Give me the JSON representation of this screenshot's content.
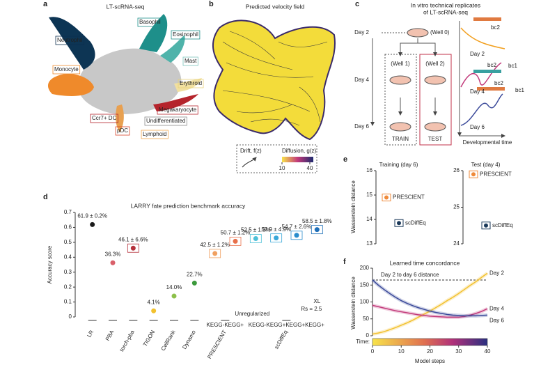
{
  "panel_a": {
    "letter": "a",
    "title": "LT-scRNA-seq",
    "labels": [
      {
        "text": "Neutrophil",
        "color": "#0d2f4f"
      },
      {
        "text": "Basophil",
        "color": "#1e8f8a"
      },
      {
        "text": "Eosinophil",
        "color": "#1e8f8a"
      },
      {
        "text": "Mast",
        "color": "#7cc4bd"
      },
      {
        "text": "Monocyte",
        "color": "#ef8a2b"
      },
      {
        "text": "Erythroid",
        "color": "#e8d27a"
      },
      {
        "text": "Megakaryocyte",
        "color": "#b5242c"
      },
      {
        "text": "Ccr7+ DC",
        "color": "#b5242c"
      },
      {
        "text": "Undifferentiated",
        "color": "#8a8a8a"
      },
      {
        "text": "pDC",
        "color": "#d9452b"
      },
      {
        "text": "Lymphoid",
        "color": "#f0a54a"
      }
    ]
  },
  "panel_b": {
    "letter": "b",
    "title": "Predicted velocity field",
    "drift_label": "Drift, f(z)",
    "diffusion_label": "Diffusion, g(z)",
    "colorbar_ticks": [
      10,
      40
    ]
  },
  "panel_c": {
    "letter": "c",
    "title_lines": [
      "In vitro technical replicates",
      "of LT-scRNA-seq"
    ],
    "days": [
      "Day 2",
      "Day 4",
      "Day 6"
    ],
    "wells": [
      "(Well 0)",
      "(Well 1)",
      "(Well 2)"
    ],
    "train": "TRAIN",
    "test": "TEST",
    "curve_days": [
      "Day 2",
      "Day 4",
      "Day 6"
    ],
    "barcodes": [
      "bc2",
      "bc2",
      "bc1",
      "bc2",
      "bc1"
    ],
    "x_label": "Developmental time"
  },
  "chart_data": [
    {
      "type": "dot",
      "panel": "d",
      "title": "LARRY fate prediction benchmark accuracy",
      "y_label": "Accuracy score",
      "categories": [
        "LR",
        "PBA",
        "torch-pba",
        "TIGON",
        "CellRank",
        "Dynamo",
        "PRESCIENT",
        "scDiffEq"
      ],
      "values": [
        [
          0.619
        ],
        [
          0.363
        ],
        [
          0.461
        ],
        [
          0.041
        ],
        [
          0.14
        ],
        [
          0.227
        ],
        [
          0.425,
          0.507
        ],
        [
          0.525,
          0.529,
          0.547,
          0.585
        ]
      ],
      "value_labels": [
        [
          "61.9 ± 0.2%"
        ],
        [
          "36.3%"
        ],
        [
          "46.1 ± 6.6%"
        ],
        [
          "4.1%"
        ],
        [
          "14.0%"
        ],
        [
          "22.7%"
        ],
        [
          "42.5 ± 1.2%",
          "50.7 ± 1.2%"
        ],
        [
          "52.5 ± 1.3%",
          "52.9 ± 4.9%",
          "54.7 ± 2.6%",
          "58.5 ± 1.8%"
        ]
      ],
      "colors": [
        [
          "#1a1a1a"
        ],
        [
          "#d9606a"
        ],
        [
          "#b5303a"
        ],
        [
          "#f2c12e"
        ],
        [
          "#8cc04a"
        ],
        [
          "#3c9a3c"
        ],
        [
          "#f0a060",
          "#e8704a"
        ],
        [
          "#4ec0d8",
          "#3aa8d8",
          "#2a8ccc",
          "#1f6fb8"
        ]
      ],
      "box_categories": [
        2,
        6,
        7
      ],
      "group_labels": [
        "KEGG-KEGG+",
        "Unregularized",
        "KEGG-KEGG+KEGG+KEGG+",
        "XL",
        "Rs = 2.5"
      ],
      "ylim": [
        0,
        0.7
      ],
      "yticks": [
        0,
        0.1,
        0.2,
        0.3,
        0.4,
        0.5,
        0.6,
        0.7
      ]
    },
    {
      "type": "strip",
      "panel": "e",
      "title": "Training (day 6)",
      "y_label": "Wasserstein distance",
      "series": [
        {
          "name": "PRESCIENT",
          "color": "#ef8a3a",
          "values": [
            14.9
          ]
        },
        {
          "name": "scDiffEq",
          "color": "#1c3a5a",
          "values": [
            13.85
          ]
        }
      ],
      "ylim": [
        13,
        16
      ],
      "yticks": [
        13,
        14,
        15,
        16
      ]
    },
    {
      "type": "strip",
      "title": "Test (day 4)",
      "series": [
        {
          "name": "PRESCIENT",
          "color": "#ef8a3a",
          "values": [
            25.9
          ]
        },
        {
          "name": "scDiffEq",
          "color": "#1c3a5a",
          "values": [
            24.5
          ]
        }
      ],
      "ylim": [
        24,
        26
      ],
      "yticks": [
        24,
        25,
        26
      ]
    },
    {
      "type": "line",
      "panel": "f",
      "title": "Learned time concordance",
      "x_label": "Model steps",
      "y_label": "Wasserstein distance",
      "x": [
        0,
        2,
        4,
        6,
        8,
        10,
        12,
        14,
        16,
        18,
        20,
        22,
        24,
        26,
        28,
        30,
        32,
        34,
        36,
        38,
        40
      ],
      "series": [
        {
          "name": "Day 2",
          "color": "#f2c12e",
          "values": [
            5,
            8,
            12,
            18,
            24,
            31,
            38,
            46,
            55,
            64,
            73,
            83,
            93,
            104,
            114,
            125,
            137,
            149,
            160,
            173,
            185
          ]
        },
        {
          "name": "Day 4",
          "color": "#c2397a",
          "values": [
            90,
            86,
            82,
            78,
            74,
            71,
            68,
            65,
            62,
            60,
            58,
            57,
            56,
            55,
            55,
            55,
            57,
            61,
            66,
            72,
            80
          ]
        },
        {
          "name": "Day 6",
          "color": "#3b4a9a",
          "values": [
            165,
            150,
            137,
            125,
            114,
            104,
            96,
            89,
            83,
            78,
            73,
            69,
            66,
            63,
            61,
            60,
            59,
            59,
            59,
            60,
            61
          ]
        }
      ],
      "hline": {
        "value": 165,
        "label": "Day 2 to day 6 distance"
      },
      "colorbar_label": "Time:",
      "xlim": [
        0,
        40
      ],
      "xticks": [
        0,
        10,
        20,
        30,
        40
      ],
      "ylim": [
        0,
        200
      ],
      "yticks": [
        0,
        50,
        100,
        150,
        200
      ]
    }
  ]
}
